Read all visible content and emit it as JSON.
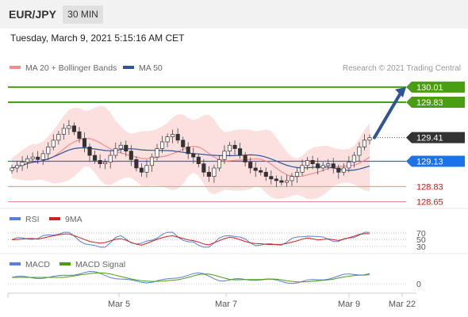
{
  "header": {
    "pair": "EUR/JPY",
    "timeframe": "30 MIN"
  },
  "datetime": "Tuesday, March 9, 2021 5:15:16 AM CET",
  "legend": {
    "ma20": "MA 20 + Bollinger Bands",
    "ma50": "MA 50",
    "credit": "Research © 2021 Trading Central"
  },
  "colors": {
    "ma20": "#ee8f8f",
    "ma50": "#2f5597",
    "resistance": "#4a9e12",
    "support": "#d11a1a",
    "pivot": "#1a73e8",
    "current": "#333333",
    "bollinger": "#fbd3d3",
    "rsi": "#5b7fd6",
    "rsi_ma": "#cc2222",
    "macd": "#5b7fd6",
    "macd_signal": "#4a9e12"
  },
  "chart_data": [
    {
      "type": "candlestick",
      "title": "EUR/JPY",
      "ylim": [
        128.58,
        130.14
      ],
      "x_ticks": [
        "Mar 5",
        "Mar 7",
        "Mar 9",
        "Mar 22"
      ],
      "levels": [
        {
          "value": 130.01,
          "label": "130.01",
          "kind": "resistance"
        },
        {
          "value": 129.83,
          "label": "129.83",
          "kind": "resistance"
        },
        {
          "value": 129.41,
          "label": "129.41",
          "kind": "current"
        },
        {
          "value": 129.13,
          "label": "129.13",
          "kind": "pivot"
        },
        {
          "value": 128.83,
          "label": "128.83",
          "kind": "support"
        },
        {
          "value": 128.65,
          "label": "128.65",
          "kind": "support"
        }
      ],
      "close_series": [
        129.05,
        129.08,
        129.12,
        129.16,
        129.18,
        129.15,
        129.22,
        129.3,
        129.38,
        129.45,
        129.52,
        129.55,
        129.48,
        129.4,
        129.3,
        129.2,
        129.14,
        129.1,
        129.12,
        129.2,
        129.28,
        129.32,
        129.25,
        129.15,
        129.05,
        129.0,
        129.08,
        129.18,
        129.28,
        129.36,
        129.42,
        129.45,
        129.38,
        129.3,
        129.22,
        129.18,
        129.1,
        129.0,
        128.95,
        129.05,
        129.15,
        129.25,
        129.32,
        129.28,
        129.2,
        129.12,
        129.05,
        129.02,
        129.0,
        128.95,
        128.92,
        128.9,
        128.88,
        128.9,
        128.95,
        129.0,
        129.08,
        129.14,
        129.1,
        129.05,
        129.08,
        129.1,
        129.05,
        129.0,
        129.05,
        129.12,
        129.2,
        129.3,
        129.38,
        129.41
      ],
      "forecast": {
        "from": 129.41,
        "to": 130.01
      }
    },
    {
      "type": "line",
      "title": "RSI",
      "series": [
        {
          "name": "RSI"
        },
        {
          "name": "9MA"
        }
      ],
      "levels": [
        "70",
        "50",
        "30"
      ]
    },
    {
      "type": "line",
      "title": "MACD",
      "series": [
        {
          "name": "MACD"
        },
        {
          "name": "MACD Signal"
        }
      ],
      "levels": [
        "0"
      ]
    }
  ],
  "rsi_legend": {
    "rsi": "RSI",
    "ma": "9MA"
  },
  "macd_legend": {
    "macd": "MACD",
    "signal": "MACD Signal"
  }
}
